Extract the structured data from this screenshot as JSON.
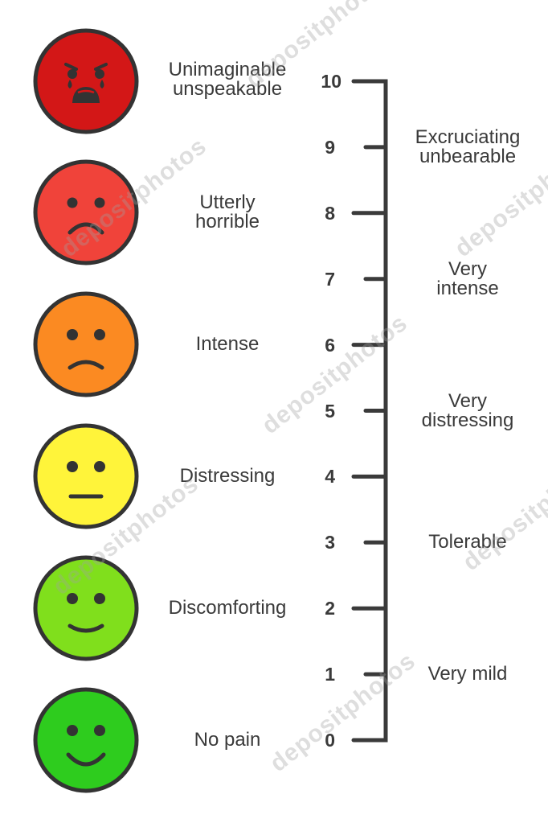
{
  "faces": [
    {
      "label": "No pain",
      "color": "#2ecc1e",
      "mood": "happy"
    },
    {
      "label": "Discomforting",
      "color": "#80df1c",
      "mood": "smile"
    },
    {
      "label": "Distressing",
      "color": "#fff43a",
      "mood": "neutral"
    },
    {
      "label": "Intense",
      "color": "#fb8a22",
      "mood": "sad"
    },
    {
      "label": "Utterly\nhorrible",
      "color": "#f0433a",
      "mood": "very-sad"
    },
    {
      "label": "Unimaginable\nunspeakable",
      "color": "#d31717",
      "mood": "crying"
    }
  ],
  "scale": {
    "ticks": [
      "0",
      "1",
      "2",
      "3",
      "4",
      "5",
      "6",
      "7",
      "8",
      "9",
      "10"
    ],
    "odd_labels": [
      {
        "value": "1",
        "label": "Very mild"
      },
      {
        "value": "3",
        "label": "Tolerable"
      },
      {
        "value": "5",
        "label": "Very\ndistressing"
      },
      {
        "value": "7",
        "label": "Very\nintense"
      },
      {
        "value": "9",
        "label": "Excruciating\nunbearable"
      }
    ],
    "axis_color": "#3a3a3a"
  },
  "watermark": "depositphotos"
}
